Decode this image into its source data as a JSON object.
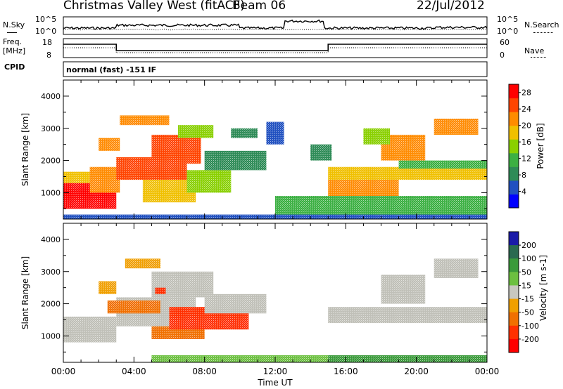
{
  "header": {
    "station": "Christmas Valley West (fitACF)",
    "beam": "Beam 06",
    "date": "22/Jul/2012"
  },
  "noise_panel": {
    "left_label": "N.Sky",
    "right_label": "N.Search",
    "left_ticks": [
      "10^5",
      "10^0"
    ],
    "right_ticks": [
      "10^5",
      "10^0"
    ]
  },
  "freq_panel": {
    "left_label_1": "Freq.",
    "left_label_2": "[MHz]",
    "right_label": "Nave",
    "left_ticks": [
      "18",
      "8"
    ],
    "right_ticks": [
      "60",
      "0"
    ]
  },
  "cpid_panel": {
    "label": "CPID",
    "mode": "normal (fast) -151 IF"
  },
  "colors": {
    "power": [
      "#0000ff",
      "#2050c0",
      "#2e8b57",
      "#3cb043",
      "#8ad000",
      "#f0c000",
      "#ff8c00",
      "#ff4500",
      "#ff0000"
    ],
    "velocity": [
      "#1a1aa8",
      "#2a6a50",
      "#3a9a3a",
      "#6cc040",
      "#c8c8c0",
      "#f0a000",
      "#f07000",
      "#ff3000",
      "#ff0000"
    ],
    "ground_scatter": "#c0c0b8"
  },
  "chart_data": [
    {
      "type": "heatmap",
      "name": "power",
      "xlabel": "",
      "ylabel": "Slant Range [km]",
      "ylim": [
        180,
        4500
      ],
      "xlim": [
        0,
        24
      ],
      "y_ticks": [
        1000,
        2000,
        3000,
        4000
      ],
      "colorbar_label": "Power [dB]",
      "colorbar_ticks": [
        4,
        8,
        12,
        16,
        20,
        24,
        28
      ],
      "colorbar_range": [
        0,
        30
      ],
      "regions": [
        {
          "t0": 0.0,
          "t1": 3.0,
          "r0": 500,
          "r1": 1300,
          "v": 28
        },
        {
          "t0": 0.0,
          "t1": 1.5,
          "r0": 1300,
          "r1": 1650,
          "v": 18
        },
        {
          "t0": 1.5,
          "t1": 3.2,
          "r0": 1000,
          "r1": 1800,
          "v": 22
        },
        {
          "t0": 3.0,
          "t1": 7.0,
          "r0": 1400,
          "r1": 2100,
          "v": 26
        },
        {
          "t0": 5.0,
          "t1": 7.8,
          "r0": 1900,
          "r1": 2800,
          "v": 24
        },
        {
          "t0": 3.2,
          "t1": 6.0,
          "r0": 3100,
          "r1": 3400,
          "v": 22
        },
        {
          "t0": 2.0,
          "t1": 3.2,
          "r0": 2300,
          "r1": 2700,
          "v": 20
        },
        {
          "t0": 4.5,
          "t1": 7.5,
          "r0": 700,
          "r1": 1400,
          "v": 18
        },
        {
          "t0": 6.5,
          "t1": 8.5,
          "r0": 2700,
          "r1": 3100,
          "v": 16
        },
        {
          "t0": 7.0,
          "t1": 9.5,
          "r0": 1000,
          "r1": 1700,
          "v": 14
        },
        {
          "t0": 8.0,
          "t1": 11.5,
          "r0": 1700,
          "r1": 2300,
          "v": 8
        },
        {
          "t0": 9.5,
          "t1": 11.0,
          "r0": 2700,
          "r1": 3000,
          "v": 8
        },
        {
          "t0": 11.5,
          "t1": 12.5,
          "r0": 2500,
          "r1": 3200,
          "v": 6
        },
        {
          "t0": 14.0,
          "t1": 15.2,
          "r0": 2000,
          "r1": 2500,
          "v": 8
        },
        {
          "t0": 15.0,
          "t1": 24.0,
          "r0": 1400,
          "r1": 1800,
          "v": 18
        },
        {
          "t0": 15.0,
          "t1": 19.0,
          "r0": 900,
          "r1": 1400,
          "v": 20
        },
        {
          "t0": 19.0,
          "t1": 24.0,
          "r0": 1750,
          "r1": 2000,
          "v": 12
        },
        {
          "t0": 18.0,
          "t1": 20.5,
          "r0": 2000,
          "r1": 2800,
          "v": 20
        },
        {
          "t0": 21.0,
          "t1": 23.5,
          "r0": 2800,
          "r1": 3300,
          "v": 20
        },
        {
          "t0": 17.0,
          "t1": 18.5,
          "r0": 2500,
          "r1": 3000,
          "v": 14
        },
        {
          "t0": 12.0,
          "t1": 24.0,
          "r0": 300,
          "r1": 900,
          "v": 10
        },
        {
          "t0": 0.0,
          "t1": 24.0,
          "r0": 180,
          "r1": 320,
          "v": 6
        }
      ]
    },
    {
      "type": "heatmap",
      "name": "velocity",
      "xlabel": "Time UT",
      "ylabel": "Slant Range [km]",
      "ylim": [
        180,
        4500
      ],
      "xlim": [
        0,
        24
      ],
      "x_ticks": [
        "00:00",
        "04:00",
        "08:00",
        "12:00",
        "16:00",
        "20:00",
        "00:00"
      ],
      "y_ticks": [
        1000,
        2000,
        3000,
        4000
      ],
      "colorbar_label": "Velocity [m s-1]",
      "colorbar_ticks": [
        200,
        100,
        50,
        15,
        -15,
        -50,
        -100,
        -200
      ],
      "regions": [
        {
          "t0": 0.0,
          "t1": 3.0,
          "r0": 800,
          "r1": 1600,
          "v": "gs"
        },
        {
          "t0": 3.0,
          "t1": 7.5,
          "r0": 1300,
          "r1": 2200,
          "v": "gs"
        },
        {
          "t0": 5.0,
          "t1": 8.5,
          "r0": 2200,
          "r1": 3000,
          "v": "gs"
        },
        {
          "t0": 5.0,
          "t1": 8.0,
          "r0": 900,
          "r1": 1300,
          "v": -80
        },
        {
          "t0": 6.0,
          "t1": 10.5,
          "r0": 1200,
          "r1": 1900,
          "v": -120
        },
        {
          "t0": 2.5,
          "t1": 5.5,
          "r0": 1700,
          "r1": 2100,
          "v": -60
        },
        {
          "t0": 3.5,
          "t1": 5.5,
          "r0": 3100,
          "r1": 3400,
          "v": -40
        },
        {
          "t0": 5.2,
          "t1": 5.8,
          "r0": 2300,
          "r1": 2500,
          "v": -200
        },
        {
          "t0": 8.0,
          "t1": 11.5,
          "r0": 1700,
          "r1": 2300,
          "v": "gs"
        },
        {
          "t0": 15.0,
          "t1": 24.0,
          "r0": 1400,
          "r1": 1900,
          "v": "gs"
        },
        {
          "t0": 18.0,
          "t1": 20.5,
          "r0": 2000,
          "r1": 2900,
          "v": "gs"
        },
        {
          "t0": 21.0,
          "t1": 23.5,
          "r0": 2800,
          "r1": 3400,
          "v": "gs"
        },
        {
          "t0": 2.0,
          "t1": 3.0,
          "r0": 2300,
          "r1": 2700,
          "v": -30
        },
        {
          "t0": 5.0,
          "t1": 15.0,
          "r0": 180,
          "r1": 400,
          "v": 40
        },
        {
          "t0": 15.0,
          "t1": 24.0,
          "r0": 180,
          "r1": 400,
          "v": 80
        }
      ]
    }
  ]
}
